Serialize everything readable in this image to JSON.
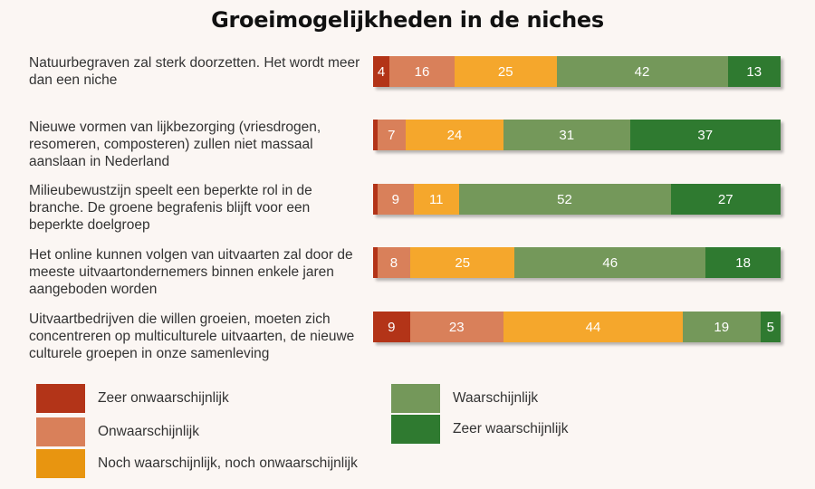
{
  "chart_data": {
    "type": "bar",
    "orientation": "horizontal",
    "stacked": true,
    "title": "Groeimogelijkheden in de niches",
    "categories": [
      "Natuurbegraven zal sterk doorzetten. Het wordt meer dan een niche",
      "Nieuwe vormen van lijkbezorging (vriesdrogen, resomeren, composteren) zullen niet massaal aanslaan in Nederland",
      "Milieubewustzijn speelt een beperkte rol in de branche. De groene begrafenis blijft voor een beperkte doelgroep",
      "Het online kunnen volgen van uitvaarten zal door de meeste uitvaartondernemers binnen enkele jaren aangeboden worden",
      "Uitvaartbedrijven die willen groeien, moeten zich concentreren op multiculturele uitvaarten, de nieuwe culturele groepen in onze samenleving"
    ],
    "series": [
      {
        "name": "Zeer onwaarschijnlijk",
        "color": "#b33418",
        "values": [
          4,
          1,
          1,
          1,
          9
        ],
        "labels": [
          "4",
          "",
          "",
          "",
          "9"
        ]
      },
      {
        "name": "Onwaarschijnlijk",
        "color": "#d9805a",
        "values": [
          16,
          7,
          9,
          8,
          23
        ],
        "labels": [
          "16",
          "7",
          "9",
          "8",
          "23"
        ]
      },
      {
        "name": "Noch waarschijnlijk, noch onwaarschijnlijk",
        "color": "#f5a72c",
        "values": [
          25,
          24,
          11,
          25,
          44
        ],
        "labels": [
          "25",
          "24",
          "11",
          "25",
          "44"
        ]
      },
      {
        "name": "Waarschijnlijk",
        "color": "#74985a",
        "values": [
          42,
          31,
          52,
          46,
          19
        ],
        "labels": [
          "42",
          "31",
          "52",
          "46",
          "19"
        ]
      },
      {
        "name": "Zeer waarschijnlijk",
        "color": "#2f7a30",
        "values": [
          13,
          37,
          27,
          18,
          5
        ],
        "labels": [
          "13",
          "37",
          "27",
          "18",
          "5"
        ]
      }
    ],
    "legend_position": "bottom",
    "legend_swatch_colors": [
      "#b33418",
      "#d9805a",
      "#e89510",
      "#74985a",
      "#2f7a30"
    ]
  }
}
